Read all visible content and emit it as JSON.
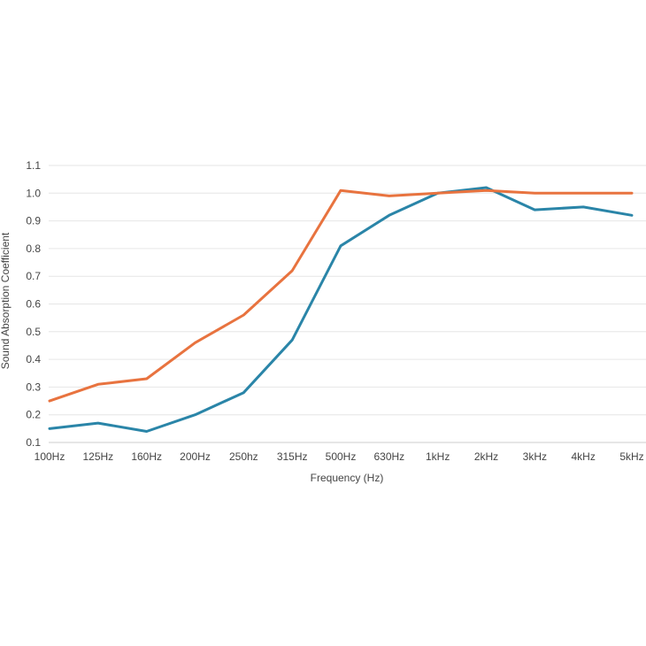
{
  "chart_data": {
    "type": "line",
    "xlabel": "Frequency (Hz)",
    "ylabel": "Sound Absorption Coefficient",
    "categories": [
      "100Hz",
      "125Hz",
      "160Hz",
      "200Hz",
      "250hz",
      "315Hz",
      "500Hz",
      "630Hz",
      "1kHz",
      "2kHz",
      "3kHz",
      "4kHz",
      "5kHz"
    ],
    "ylim": [
      0.1,
      1.1
    ],
    "yticks": [
      "0.1",
      "0.2",
      "0.3",
      "0.4",
      "0.5",
      "0.6",
      "0.7",
      "0.8",
      "0.9",
      "1.0",
      "1.1"
    ],
    "grid": true,
    "legend": "none",
    "series": [
      {
        "color": "#e8733f",
        "values": [
          0.25,
          0.31,
          0.33,
          0.46,
          0.56,
          0.72,
          1.01,
          0.99,
          1.0,
          1.01,
          1.0,
          1.0,
          1.0
        ]
      },
      {
        "color": "#2a85a8",
        "values": [
          0.15,
          0.17,
          0.14,
          0.2,
          0.28,
          0.47,
          0.81,
          0.92,
          1.0,
          1.02,
          0.94,
          0.95,
          0.92
        ]
      }
    ]
  }
}
